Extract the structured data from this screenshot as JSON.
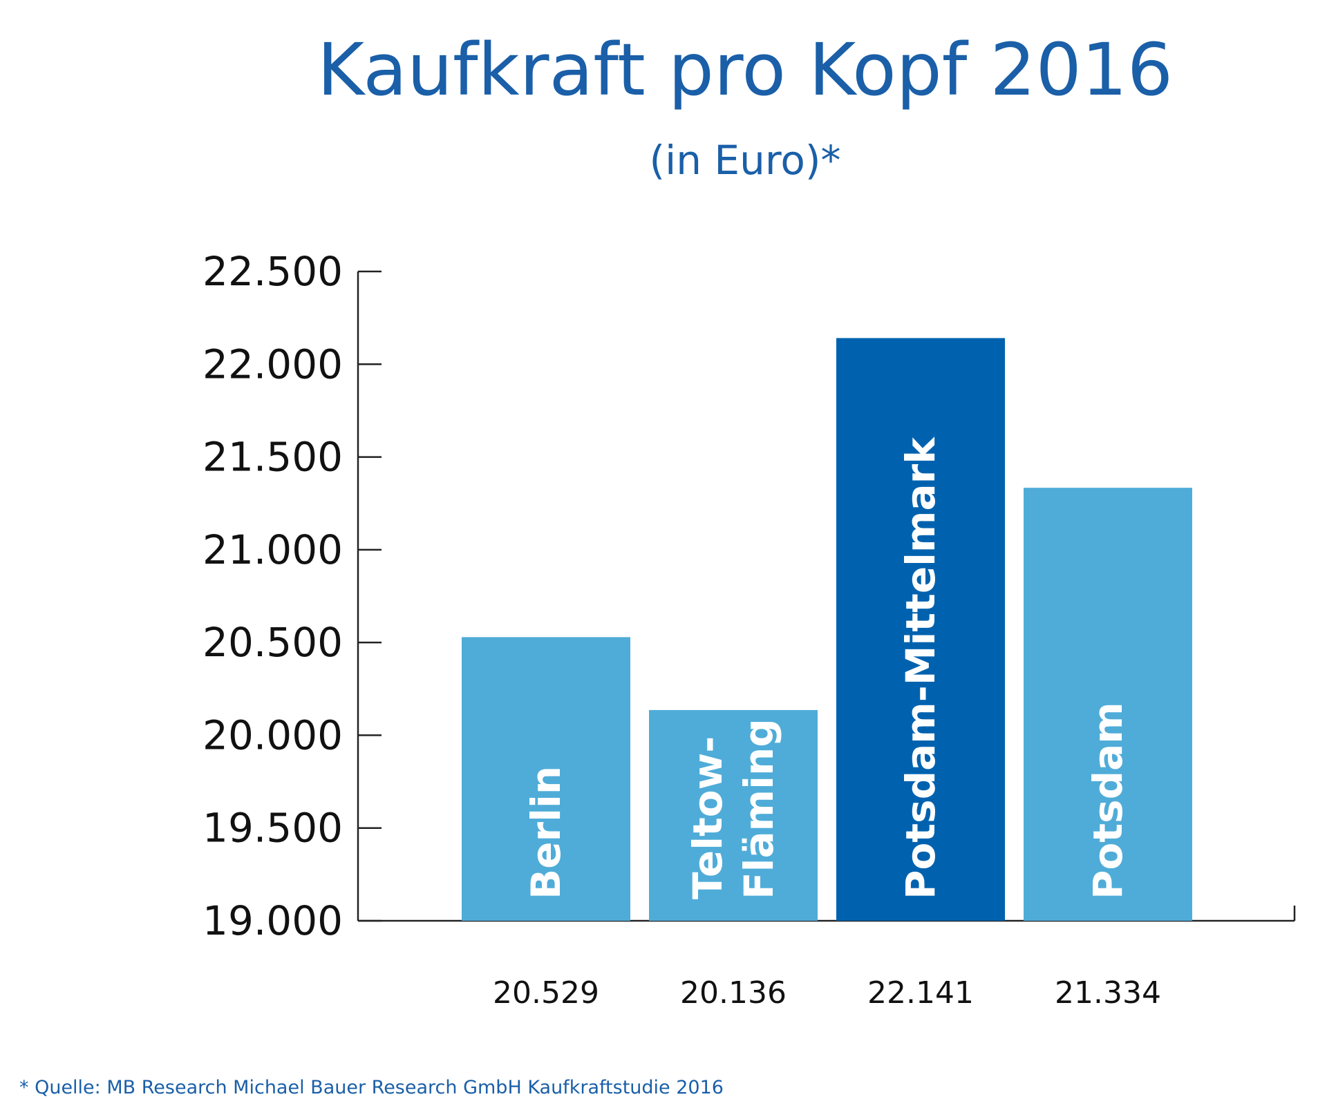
{
  "chart_data": {
    "type": "bar",
    "title": "Kaufkraft pro Kopf 2016",
    "subtitle": "(in Euro)*",
    "categories": [
      "Berlin",
      "Teltow-Fläming",
      "Potsdam-Mittelmark",
      "Potsdam"
    ],
    "bar_label_lines": [
      [
        "Berlin"
      ],
      [
        "Teltow-",
        "Fläming"
      ],
      [
        "Potsdam-Mittelmark"
      ],
      [
        "Potsdam"
      ]
    ],
    "values": [
      20529,
      20136,
      22141,
      21334
    ],
    "value_labels": [
      "20.529",
      "20.136",
      "22.141",
      "21.334"
    ],
    "highlight_index": 2,
    "ylim": [
      19000,
      22500
    ],
    "yticks": [
      19000,
      19500,
      20000,
      20500,
      21000,
      21500,
      22000,
      22500
    ],
    "ytick_labels": [
      "19.000",
      "19.500",
      "20.000",
      "20.500",
      "21.000",
      "21.500",
      "22.000",
      "22.500"
    ],
    "xlabel": "",
    "ylabel": "",
    "grid": false,
    "footnote": "* Quelle: MB Research Michael Bauer Research GmbH Kaufkraftstudie 2016",
    "colors": {
      "bar": "#4facd8",
      "bar_highlight": "#0062af",
      "title": "#1a5fa8",
      "axis": "#222222"
    }
  }
}
